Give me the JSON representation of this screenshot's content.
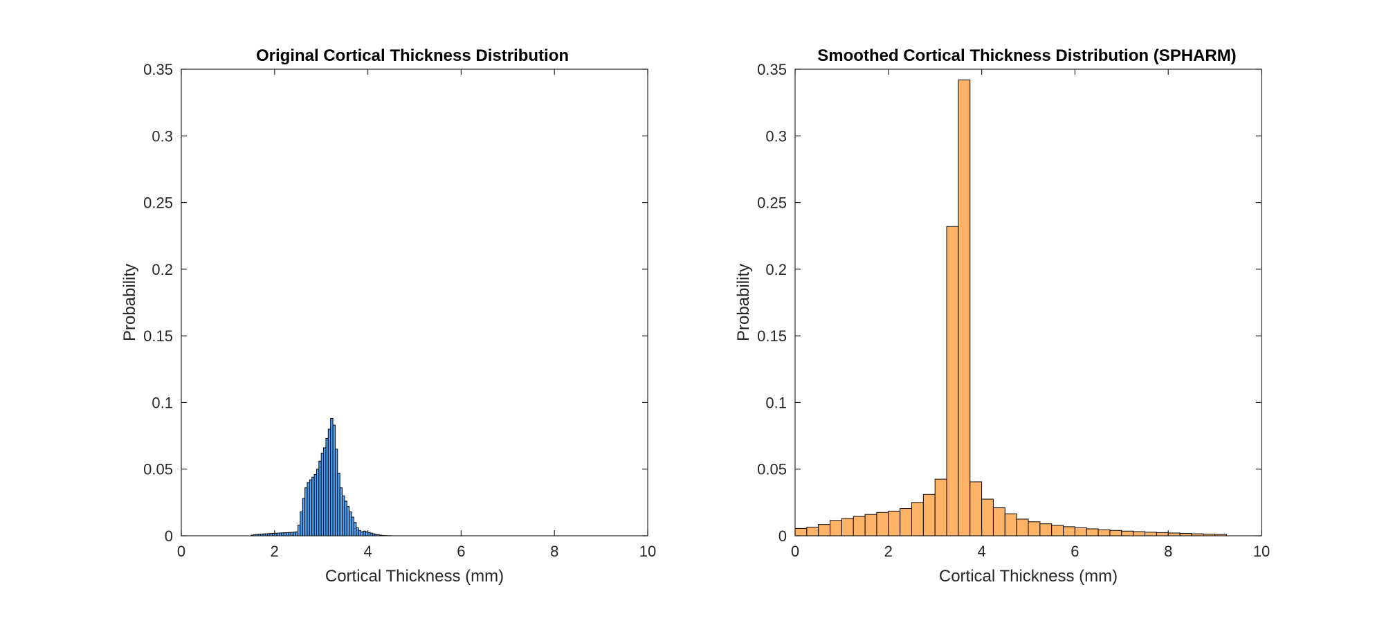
{
  "chart_data": [
    {
      "type": "bar",
      "title": "Original Cortical Thickness Distribution",
      "xlabel": "Cortical Thickness (mm)",
      "ylabel": "Probability",
      "xlim": [
        0,
        10
      ],
      "ylim": [
        0,
        0.35
      ],
      "xticks": [
        "0",
        "2",
        "4",
        "6",
        "8",
        "10"
      ],
      "yticks": [
        "0",
        "0.05",
        "0.1",
        "0.15",
        "0.2",
        "0.25",
        "0.3",
        "0.35"
      ],
      "grid": false,
      "bar_color": "#4da6ff",
      "edge_color": "#000000",
      "bin_width": 0.05,
      "bin_start": 1.5,
      "values": [
        0.0005,
        0.0008,
        0.001,
        0.0012,
        0.0013,
        0.0014,
        0.0015,
        0.0016,
        0.0017,
        0.0018,
        0.0019,
        0.002,
        0.0021,
        0.0022,
        0.0023,
        0.0024,
        0.0025,
        0.0026,
        0.0028,
        0.003,
        0.008,
        0.018,
        0.028,
        0.036,
        0.04,
        0.042,
        0.044,
        0.046,
        0.05,
        0.056,
        0.062,
        0.066,
        0.073,
        0.08,
        0.088,
        0.083,
        0.065,
        0.047,
        0.036,
        0.03,
        0.026,
        0.022,
        0.018,
        0.014,
        0.01,
        0.006,
        0.004,
        0.003,
        0.0035,
        0.003,
        0.0025,
        0.002,
        0.0015,
        0.001,
        0.0008,
        0.0005,
        0.0003,
        0.0002,
        0.0001,
        0.0001
      ]
    },
    {
      "type": "bar",
      "title": "Smoothed Cortical Thickness Distribution (SPHARM)",
      "xlabel": "Cortical Thickness (mm)",
      "ylabel": "Probability",
      "xlim": [
        0,
        10
      ],
      "ylim": [
        0,
        0.35
      ],
      "xticks": [
        "0",
        "2",
        "4",
        "6",
        "8",
        "10"
      ],
      "yticks": [
        "0",
        "0.05",
        "0.1",
        "0.15",
        "0.2",
        "0.25",
        "0.3",
        "0.35"
      ],
      "grid": false,
      "bar_color": "#ffb366",
      "edge_color": "#000000",
      "bin_width": 0.25,
      "bin_start": 0,
      "values": [
        0.0055,
        0.0065,
        0.0085,
        0.0115,
        0.013,
        0.0145,
        0.016,
        0.0175,
        0.0185,
        0.0205,
        0.025,
        0.031,
        0.0425,
        0.232,
        0.342,
        0.0405,
        0.0275,
        0.021,
        0.0165,
        0.0125,
        0.0105,
        0.009,
        0.0078,
        0.0068,
        0.006,
        0.0052,
        0.0045,
        0.004,
        0.0035,
        0.0031,
        0.0027,
        0.0024,
        0.0021,
        0.0018,
        0.0015,
        0.0012,
        0.001
      ]
    }
  ]
}
